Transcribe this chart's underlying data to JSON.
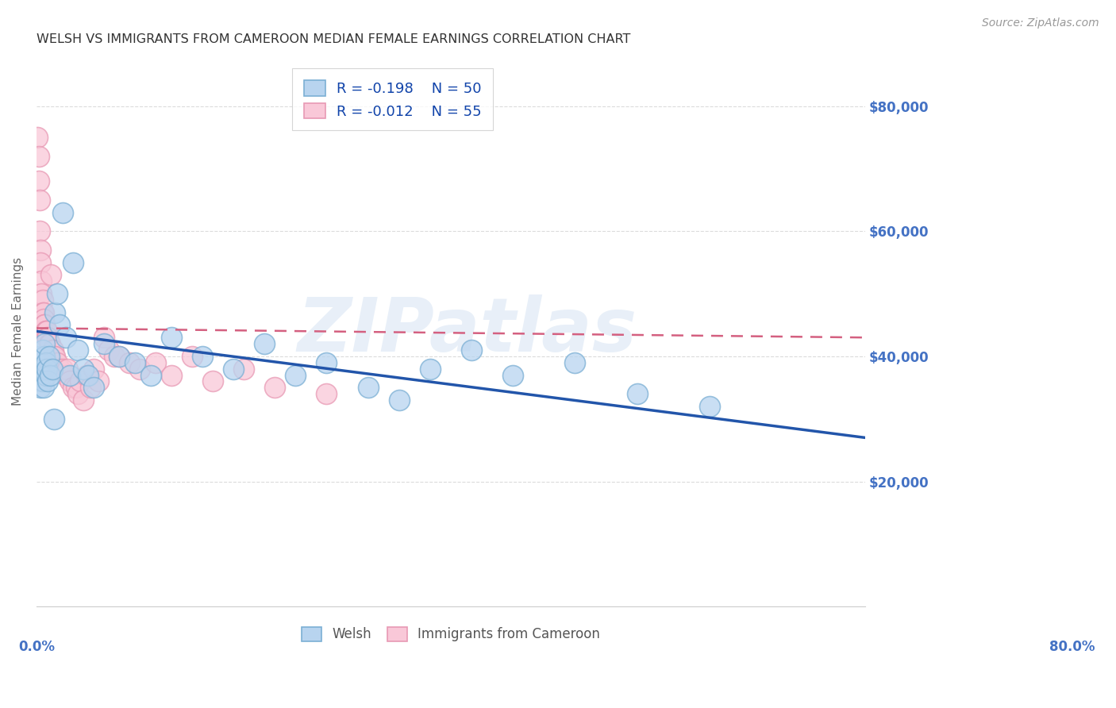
{
  "title": "WELSH VS IMMIGRANTS FROM CAMEROON MEDIAN FEMALE EARNINGS CORRELATION CHART",
  "source": "Source: ZipAtlas.com",
  "ylabel": "Median Female Earnings",
  "y_ticks": [
    20000,
    40000,
    60000,
    80000
  ],
  "y_tick_labels": [
    "$20,000",
    "$40,000",
    "$60,000",
    "$80,000"
  ],
  "watermark": "ZIPatlas",
  "legend_entries": [
    {
      "label": "Welsh",
      "R": "-0.198",
      "N": "50",
      "color": "#aec6e8"
    },
    {
      "label": "Immigrants from Cameroon",
      "R": "-0.012",
      "N": "55",
      "color": "#f4b8c8"
    }
  ],
  "welsh_scatter_x": [
    0.002,
    0.003,
    0.003,
    0.004,
    0.004,
    0.005,
    0.005,
    0.006,
    0.006,
    0.007,
    0.007,
    0.008,
    0.008,
    0.009,
    0.009,
    0.01,
    0.011,
    0.012,
    0.013,
    0.015,
    0.017,
    0.018,
    0.02,
    0.022,
    0.025,
    0.028,
    0.032,
    0.035,
    0.04,
    0.045,
    0.05,
    0.055,
    0.065,
    0.08,
    0.095,
    0.11,
    0.13,
    0.16,
    0.19,
    0.22,
    0.25,
    0.28,
    0.32,
    0.35,
    0.38,
    0.42,
    0.46,
    0.52,
    0.58,
    0.65
  ],
  "welsh_scatter_y": [
    38000,
    36000,
    40000,
    37000,
    35000,
    39000,
    38000,
    36000,
    41000,
    38000,
    35000,
    40000,
    42000,
    37000,
    39000,
    38000,
    36000,
    40000,
    37000,
    38000,
    30000,
    47000,
    50000,
    45000,
    63000,
    43000,
    37000,
    55000,
    41000,
    38000,
    37000,
    35000,
    42000,
    40000,
    39000,
    37000,
    43000,
    40000,
    38000,
    42000,
    37000,
    39000,
    35000,
    33000,
    38000,
    41000,
    37000,
    39000,
    34000,
    32000
  ],
  "cameroon_scatter_x": [
    0.001,
    0.002,
    0.002,
    0.003,
    0.003,
    0.004,
    0.004,
    0.005,
    0.005,
    0.006,
    0.006,
    0.007,
    0.007,
    0.008,
    0.008,
    0.009,
    0.009,
    0.01,
    0.01,
    0.011,
    0.012,
    0.013,
    0.014,
    0.015,
    0.016,
    0.017,
    0.018,
    0.02,
    0.022,
    0.025,
    0.028,
    0.03,
    0.032,
    0.035,
    0.038,
    0.04,
    0.042,
    0.045,
    0.048,
    0.052,
    0.055,
    0.06,
    0.065,
    0.07,
    0.075,
    0.08,
    0.09,
    0.1,
    0.115,
    0.13,
    0.15,
    0.17,
    0.2,
    0.23,
    0.28
  ],
  "cameroon_scatter_y": [
    75000,
    72000,
    68000,
    65000,
    60000,
    57000,
    55000,
    52000,
    50000,
    49000,
    47000,
    47000,
    46000,
    45000,
    45000,
    44000,
    44000,
    43000,
    44000,
    43000,
    42000,
    42000,
    53000,
    41000,
    41000,
    40000,
    40000,
    39000,
    38000,
    38000,
    37000,
    38000,
    36000,
    35000,
    35000,
    34000,
    36000,
    33000,
    37000,
    35000,
    38000,
    36000,
    43000,
    41000,
    40000,
    40000,
    39000,
    38000,
    39000,
    37000,
    40000,
    36000,
    38000,
    35000,
    34000
  ],
  "welsh_line_x": [
    0.0,
    0.8
  ],
  "welsh_line_y": [
    44000,
    27000
  ],
  "cameroon_line_x": [
    0.0,
    0.8
  ],
  "cameroon_line_y": [
    44500,
    43000
  ],
  "scatter_size": 350,
  "welsh_fill_color": "#b8d4ef",
  "welsh_edge_color": "#7bafd4",
  "cameroon_fill_color": "#f9c8d8",
  "cameroon_edge_color": "#e899b4",
  "welsh_line_color": "#2255aa",
  "cameroon_line_color": "#d46080",
  "background_color": "#ffffff",
  "grid_color": "#cccccc",
  "title_color": "#333333",
  "axis_color": "#4472c4",
  "legend_R_N_color": "#1144aa",
  "xlim": [
    0.0,
    0.8
  ],
  "ylim": [
    0,
    88000
  ]
}
